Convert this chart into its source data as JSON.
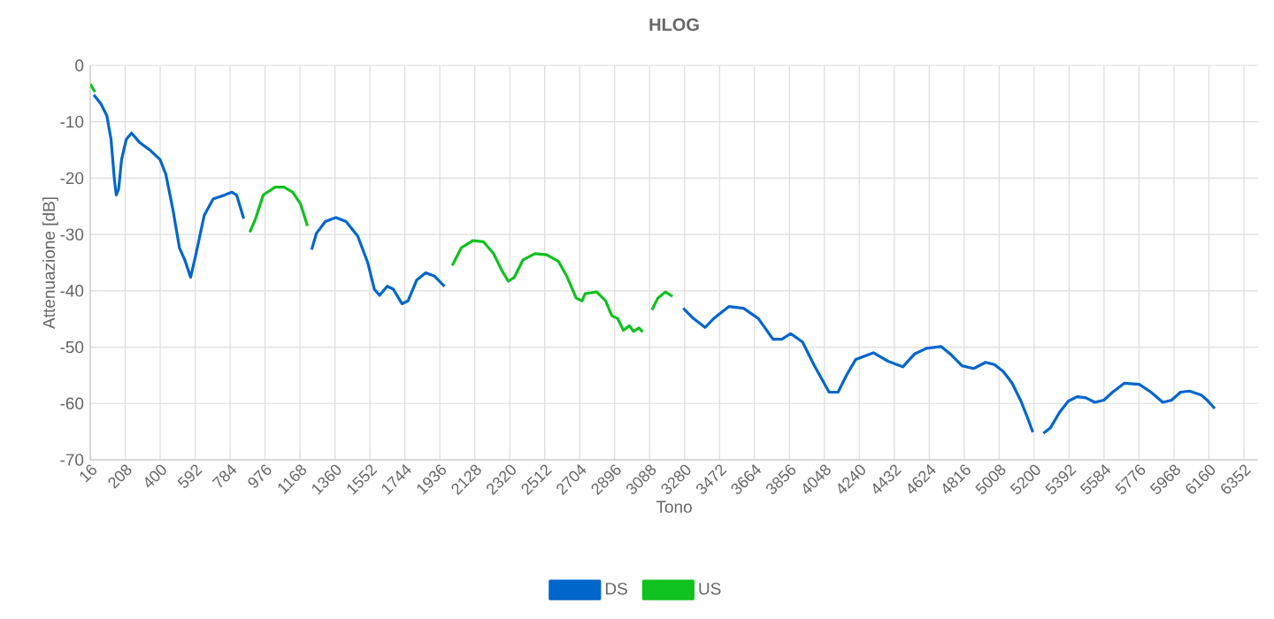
{
  "chart_data": {
    "type": "line",
    "title": "HLOG",
    "xlabel": "Tono",
    "ylabel": "Attenuazione [dB]",
    "xlim": [
      16,
      6430
    ],
    "ylim": [
      -70,
      0
    ],
    "xticks": [
      16,
      208,
      400,
      592,
      784,
      976,
      1168,
      1360,
      1552,
      1744,
      1936,
      2128,
      2320,
      2512,
      2704,
      2896,
      3088,
      3280,
      3472,
      3664,
      3856,
      4048,
      4240,
      4432,
      4624,
      4816,
      5008,
      5200,
      5392,
      5584,
      5776,
      5968,
      6160,
      6352
    ],
    "yticks": [
      -70,
      -60,
      -50,
      -40,
      -30,
      -20,
      -10,
      0
    ],
    "grid": true,
    "legend": "bottom",
    "marker": "none",
    "line_style": "solid",
    "series": [
      {
        "name": "DS",
        "color": "#0066cc",
        "x": [
          35,
          74,
          107,
          130,
          149,
          159,
          172,
          188,
          214,
          243,
          285,
          350,
          399,
          431,
          470,
          506,
          535,
          567,
          593,
          642,
          691,
          755,
          794,
          820,
          859,
          1220,
          1232,
          1258,
          1307,
          1365,
          1421,
          1485,
          1540,
          1576,
          1605,
          1647,
          1680,
          1728,
          1761,
          1809,
          1858,
          1907,
          1962,
          3250,
          3273,
          3328,
          3393,
          3441,
          3523,
          3604,
          3685,
          3766,
          3814,
          3863,
          3928,
          3993,
          4074,
          4123,
          4171,
          4220,
          4317,
          4398,
          4479,
          4544,
          4609,
          4690,
          4739,
          4804,
          4868,
          4933,
          4982,
          5030,
          5079,
          5128,
          5160,
          5193,
          5220,
          5251,
          5290,
          5339,
          5387,
          5436,
          5485,
          5533,
          5583,
          5631,
          5696,
          5777,
          5842,
          5907,
          5955,
          6004,
          6053,
          6118,
          6150,
          6192
        ],
        "values": [
          -5.2,
          -6.8,
          -8.9,
          -13.1,
          -20.4,
          -23.0,
          -21.9,
          -16.7,
          -13.1,
          -12.0,
          -13.6,
          -15.2,
          -16.7,
          -19.3,
          -25.6,
          -32.4,
          -34.5,
          -37.6,
          -34.0,
          -26.6,
          -23.7,
          -23.0,
          -22.5,
          -23.0,
          -27.2,
          null,
          -32.7,
          -29.8,
          -27.7,
          -27.0,
          -27.7,
          -30.3,
          -35.0,
          -39.7,
          -40.8,
          -39.2,
          -39.7,
          -42.3,
          -41.8,
          -38.1,
          -36.8,
          -37.4,
          -39.2,
          null,
          -43.1,
          -44.9,
          -46.5,
          -44.9,
          -42.8,
          -43.1,
          -44.9,
          -48.6,
          -48.6,
          -47.6,
          -49.1,
          -53.3,
          -58.0,
          -58.0,
          -54.9,
          -52.2,
          -51.0,
          -52.5,
          -53.5,
          -51.2,
          -50.2,
          -49.9,
          -51.2,
          -53.3,
          -53.8,
          -52.7,
          -53.1,
          -54.3,
          -56.4,
          -59.6,
          -62.2,
          -65.1,
          null,
          -65.3,
          -64.3,
          -61.6,
          -59.6,
          -58.8,
          -59.0,
          -59.8,
          -59.4,
          -58.0,
          -56.4,
          -56.6,
          -58.0,
          -59.8,
          -59.4,
          -58.0,
          -57.8,
          -58.5,
          -59.4,
          -60.9
        ]
      },
      {
        "name": "US",
        "color": "#11c11f",
        "x": [
          16,
          42,
          500,
          892,
          924,
          966,
          1031,
          1080,
          1128,
          1171,
          1209,
          1600,
          2004,
          2053,
          2117,
          2176,
          2231,
          2280,
          2312,
          2345,
          2393,
          2458,
          2523,
          2588,
          2636,
          2685,
          2717,
          2734,
          2798,
          2847,
          2880,
          2912,
          2944,
          2977,
          3000,
          3030,
          3050,
          3070,
          3101,
          3133,
          3176,
          3214
        ],
        "values": [
          -3.3,
          -4.7,
          null,
          -29.6,
          -27.2,
          -23.0,
          -21.6,
          -21.6,
          -22.5,
          -24.6,
          -28.5,
          null,
          -35.5,
          -32.4,
          -31.1,
          -31.3,
          -33.4,
          -36.6,
          -38.3,
          -37.6,
          -34.5,
          -33.4,
          -33.6,
          -34.8,
          -37.6,
          -41.3,
          -41.8,
          -40.5,
          -40.2,
          -41.8,
          -44.4,
          -44.9,
          -47.0,
          -46.2,
          -47.2,
          -46.6,
          -47.3,
          null,
          -43.4,
          -41.3,
          -40.2,
          -41.0
        ]
      }
    ]
  }
}
